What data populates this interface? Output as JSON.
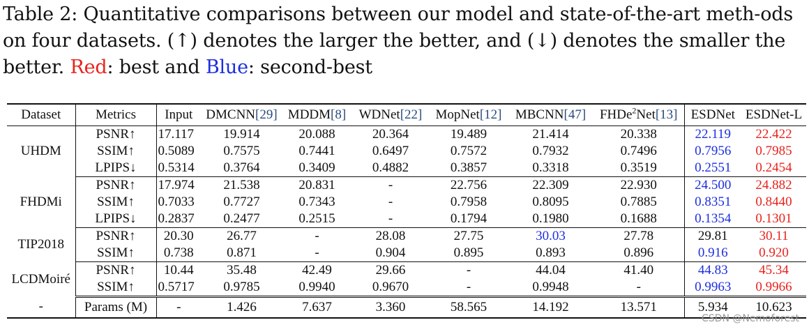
{
  "caption": {
    "part1": "Table 2: Quantitative comparisons between our model and state-of-the-art meth-ods on four datasets. (↑) denotes the larger the better, and (↓) denotes the smaller the better. ",
    "red_word": "Red",
    "part2": ": best and ",
    "blue_word": "Blue",
    "part3": ": second-best"
  },
  "headers": {
    "dataset": "Dataset",
    "metrics": "Metrics",
    "input": "Input",
    "dmcnn": "DMCNN",
    "dmcnn_ref": "[29]",
    "mddm": "MDDM",
    "mddm_ref": "[8]",
    "wdnet": "WDNet",
    "wdnet_ref": "[22]",
    "mopnet": "MopNet",
    "mopnet_ref": "[12]",
    "mbcnn": "MBCNN",
    "mbcnn_ref": "[47]",
    "fhde": "FHDe",
    "fhde_sup": "2",
    "fhde_tail": "Net",
    "fhde_ref": "[13]",
    "esdnet": "ESDNet",
    "esdnet_l": "ESDNet-L"
  },
  "groups": [
    {
      "dataset": "UHDM",
      "rows": [
        {
          "metric": "PSNR↑",
          "cells": [
            "17.117",
            "19.914",
            "20.088",
            "20.364",
            "19.489",
            "21.414",
            "20.338",
            "22.119",
            "22.422"
          ]
        },
        {
          "metric": "SSIM↑",
          "cells": [
            "0.5089",
            "0.7575",
            "0.7441",
            "0.6497",
            "0.7572",
            "0.7932",
            "0.7496",
            "0.7956",
            "0.7985"
          ]
        },
        {
          "metric": "LPIPS↓",
          "cells": [
            "0.5314",
            "0.3764",
            "0.3409",
            "0.4882",
            "0.3857",
            "0.3318",
            "0.3519",
            "0.2551",
            "0.2454"
          ]
        }
      ]
    },
    {
      "dataset": "FHDMi",
      "rows": [
        {
          "metric": "PSNR↑",
          "cells": [
            "17.974",
            "21.538",
            "20.831",
            "-",
            "22.756",
            "22.309",
            "22.930",
            "24.500",
            "24.882"
          ]
        },
        {
          "metric": "SSIM↑",
          "cells": [
            "0.7033",
            "0.7727",
            "0.7343",
            "-",
            "0.7958",
            "0.8095",
            "0.7885",
            "0.8351",
            "0.8440"
          ]
        },
        {
          "metric": "LPIPS↓",
          "cells": [
            "0.2837",
            "0.2477",
            "0.2515",
            "-",
            "0.1794",
            "0.1980",
            "0.1688",
            "0.1354",
            "0.1301"
          ]
        }
      ]
    },
    {
      "dataset": "TIP2018",
      "rows": [
        {
          "metric": "PSNR↑",
          "cells": [
            "20.30",
            "26.77",
            "-",
            "28.08",
            "27.75",
            "30.03",
            "27.78",
            "29.81",
            "30.11"
          ]
        },
        {
          "metric": "SSIM↑",
          "cells": [
            "0.738",
            "0.871",
            "-",
            "0.904",
            "0.895",
            "0.893",
            "0.896",
            "0.916",
            "0.920"
          ]
        }
      ]
    },
    {
      "dataset": "LCDMoiré",
      "rows": [
        {
          "metric": "PSNR↑",
          "cells": [
            "10.44",
            "35.48",
            "42.49",
            "29.66",
            "-",
            "44.04",
            "41.40",
            "44.83",
            "45.34"
          ]
        },
        {
          "metric": "SSIM↑",
          "cells": [
            "0.5717",
            "0.9785",
            "0.9940",
            "0.9670",
            "-",
            "0.9948",
            "-",
            "0.9963",
            "0.9966"
          ]
        }
      ]
    }
  ],
  "params": {
    "dataset": "-",
    "metric": "Params (M)",
    "cells": [
      "-",
      "1.426",
      "7.637",
      "3.360",
      "58.565",
      "14.192",
      "13.571",
      "5.934",
      "10.623"
    ]
  },
  "highlight_colors": {
    "best": "#e8221c",
    "second": "#1c2ee0"
  },
  "watermark": "CSDN @Nemoforest"
}
